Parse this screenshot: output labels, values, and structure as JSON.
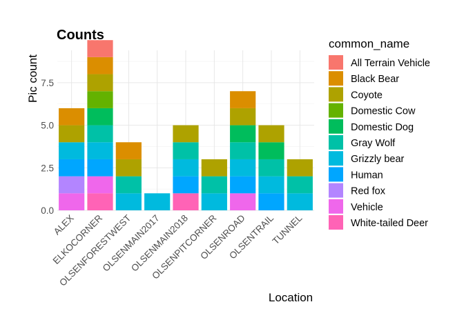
{
  "chart_data": {
    "type": "bar",
    "stacked": true,
    "title": "Counts",
    "xlabel": "Location",
    "ylabel": "Pic count",
    "ylim": [
      0,
      9.4
    ],
    "yticks": [
      0,
      2.5,
      5,
      7.5
    ],
    "ytick_labels": [
      "0.0",
      "2.5",
      "5.0",
      "7.5"
    ],
    "grid": true,
    "legend_position": "right",
    "legend_title": "common_name",
    "categories": [
      "ALEX",
      "ELKOCORNER",
      "OLSENFORESTWEST",
      "OLSENMAIN2017",
      "OLSENMAIN2018",
      "OLSENPITCORNER",
      "OLSENROAD",
      "OLSENTRAIL",
      "TUNNEL"
    ],
    "series": [
      {
        "name": "All Terrain Vehicle",
        "color": "#F8766D",
        "values": [
          0,
          1,
          0,
          0,
          0,
          0,
          0,
          0,
          0
        ]
      },
      {
        "name": "Black Bear",
        "color": "#DB8E00",
        "values": [
          1,
          1,
          1,
          0,
          0,
          0,
          1,
          0,
          0
        ]
      },
      {
        "name": "Coyote",
        "color": "#AEA200",
        "values": [
          1,
          1,
          1,
          0,
          1,
          1,
          1,
          1,
          1
        ]
      },
      {
        "name": "Domestic Cow",
        "color": "#64B200",
        "values": [
          0,
          1,
          0,
          0,
          0,
          0,
          0,
          0,
          0
        ]
      },
      {
        "name": "Domestic Dog",
        "color": "#00BD5C",
        "values": [
          0,
          1,
          0,
          0,
          0,
          0,
          1,
          1,
          0
        ]
      },
      {
        "name": "Gray Wolf",
        "color": "#00C1A7",
        "values": [
          0,
          1,
          1,
          0,
          1,
          1,
          1,
          1,
          1
        ]
      },
      {
        "name": "Grizzly bear",
        "color": "#00BADE",
        "values": [
          1,
          1,
          1,
          1,
          1,
          1,
          1,
          1,
          1
        ]
      },
      {
        "name": "Human",
        "color": "#00A6FF",
        "values": [
          1,
          1,
          0,
          0,
          1,
          0,
          1,
          1,
          0
        ]
      },
      {
        "name": "Red fox",
        "color": "#B385FF",
        "values": [
          1,
          0,
          0,
          0,
          0,
          0,
          0,
          0,
          0
        ]
      },
      {
        "name": "Vehicle",
        "color": "#EF67EB",
        "values": [
          1,
          1,
          0,
          0,
          0,
          0,
          1,
          0,
          0
        ]
      },
      {
        "name": "White-tailed Deer",
        "color": "#FF63B6",
        "values": [
          0,
          1,
          0,
          0,
          1,
          0,
          0,
          0,
          0
        ]
      }
    ]
  }
}
